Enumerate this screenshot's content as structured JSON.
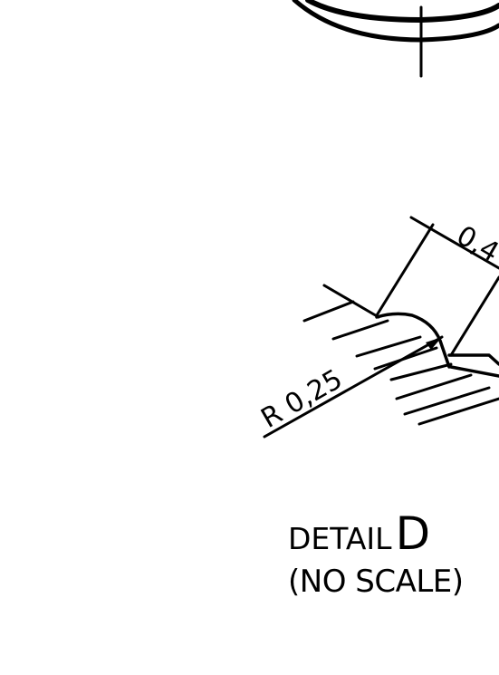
{
  "dimensions": {
    "radius_label": "R 0,25",
    "length_label": "0,4"
  },
  "caption": {
    "detail_word": "DETAIL",
    "detail_letter": "D",
    "scale_note": "(NO SCALE)"
  }
}
